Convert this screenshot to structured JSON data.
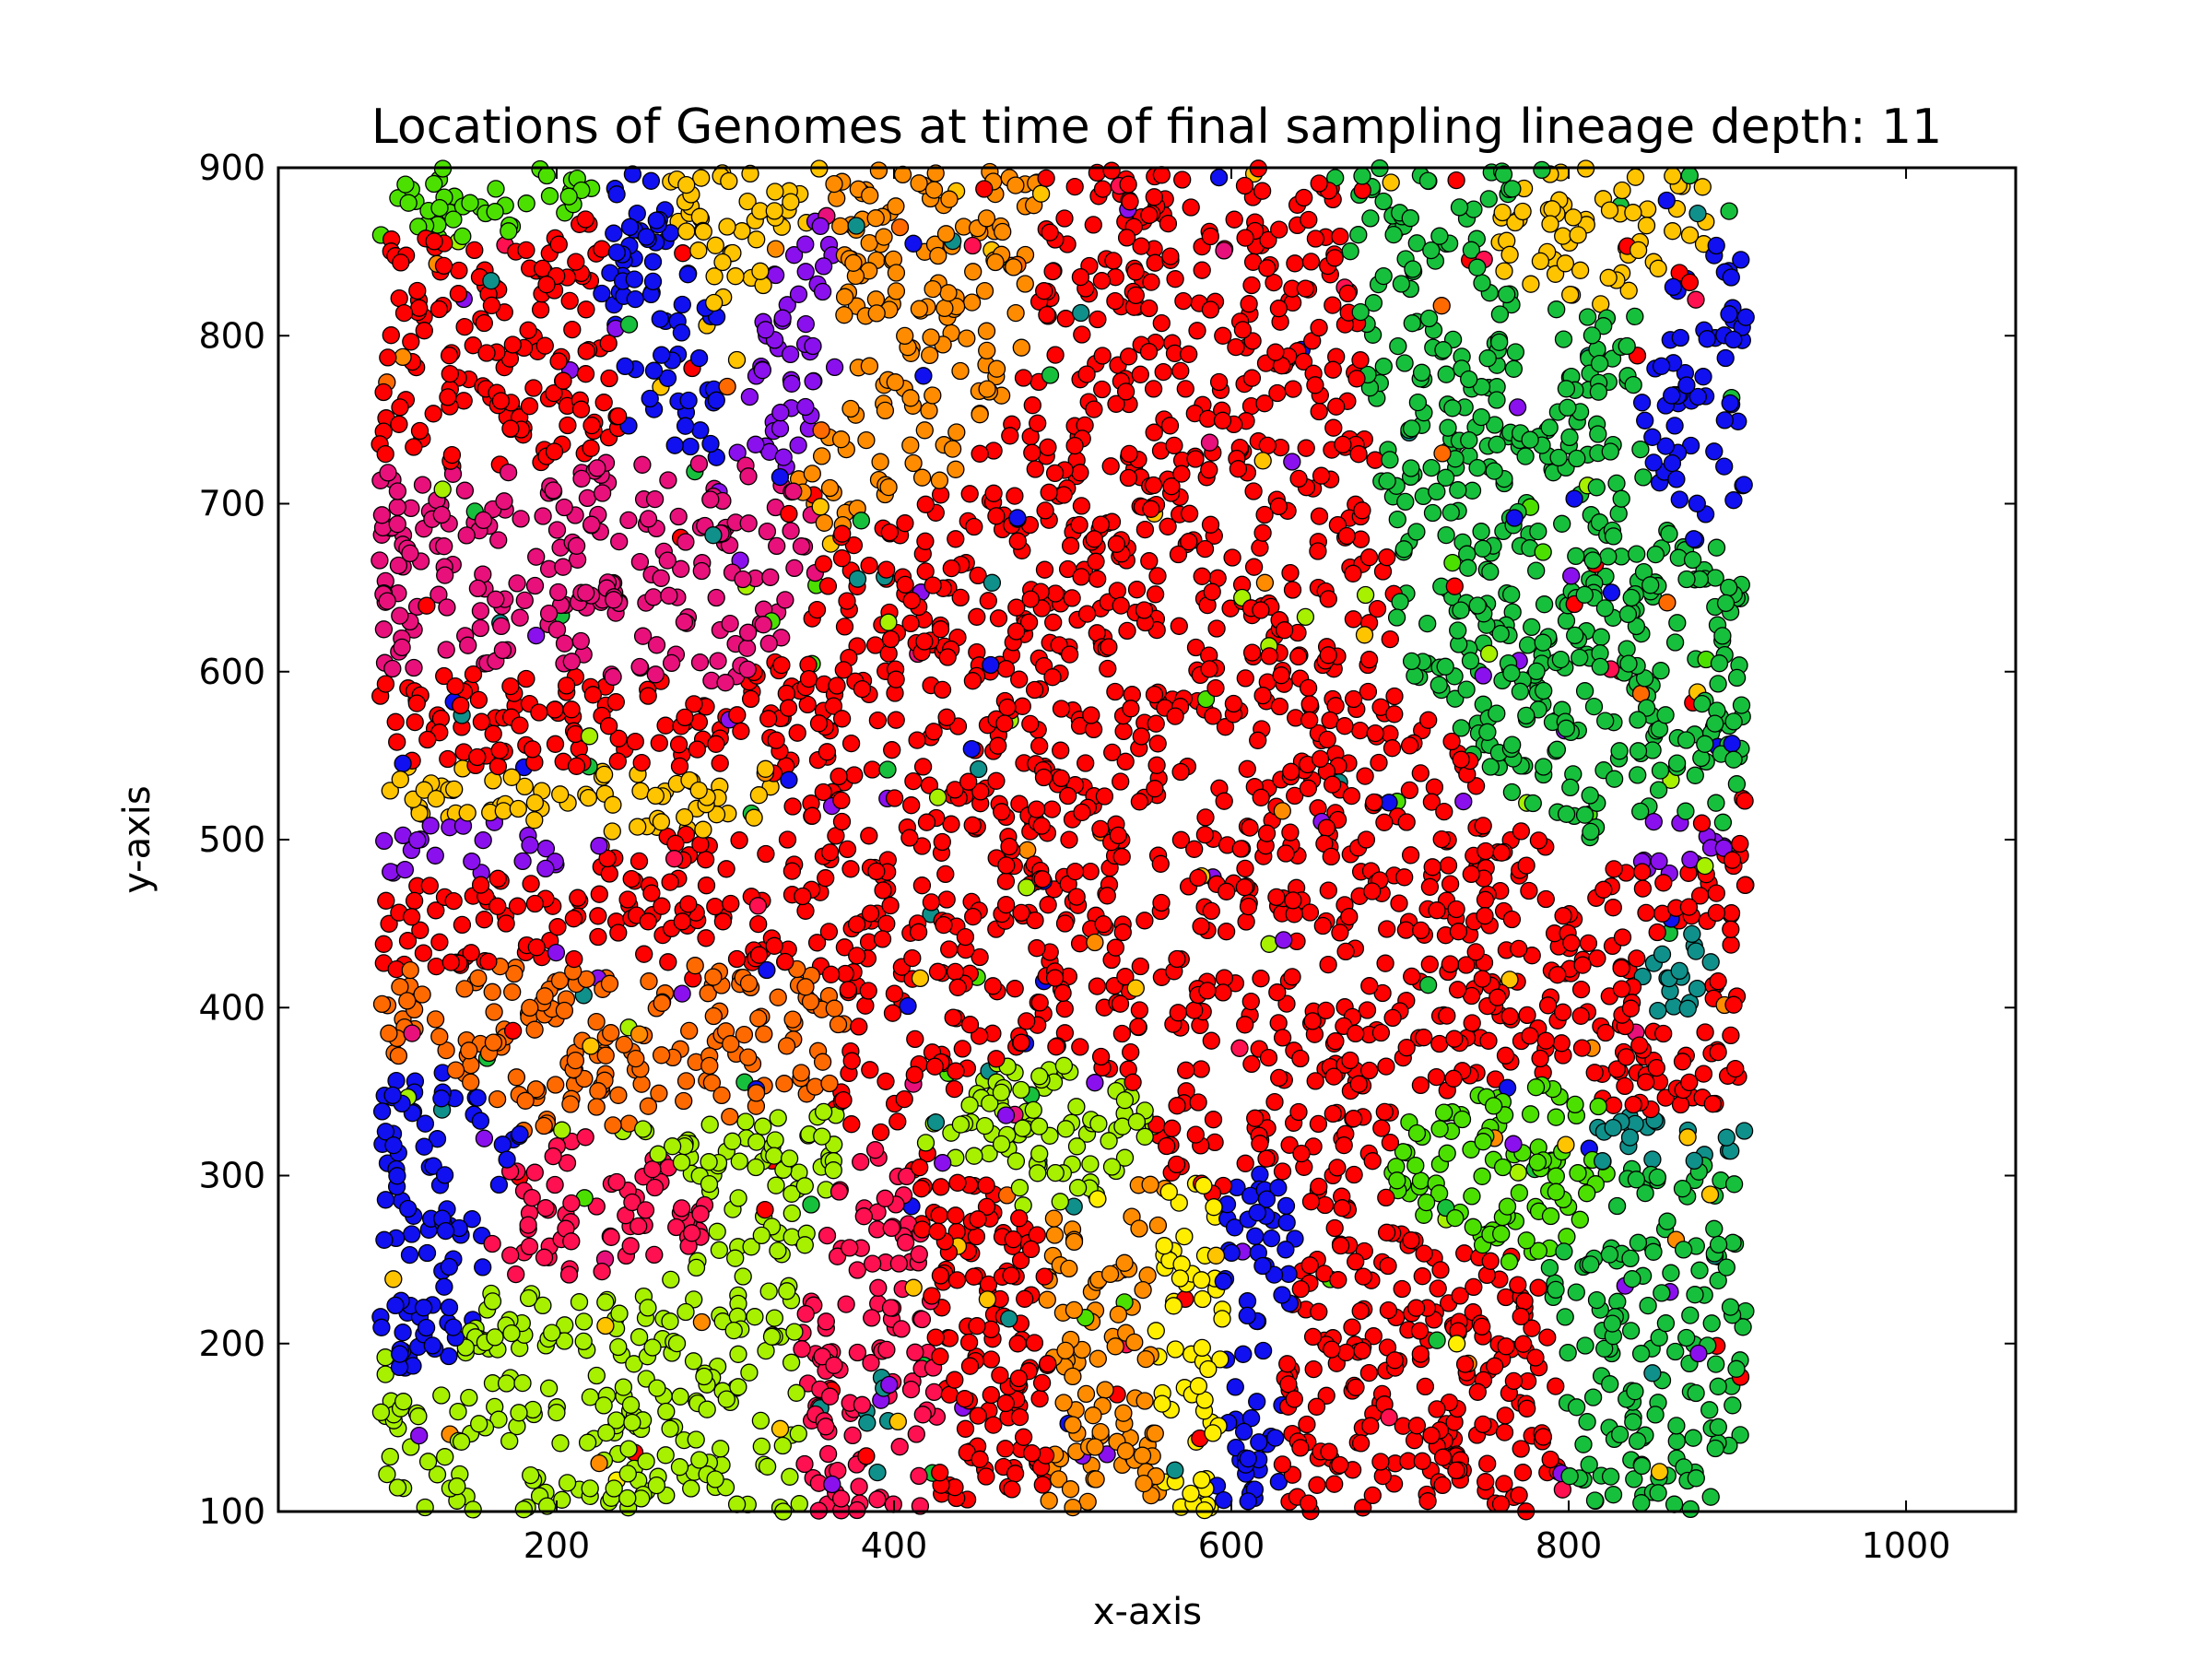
{
  "chart_data": {
    "type": "scatter",
    "title": "Locations of Genomes at time of final sampling lineage depth: 11",
    "xlabel": "x-axis",
    "ylabel": "y-axis",
    "xlim": [
      35,
      1065
    ],
    "ylim": [
      100,
      900
    ],
    "xticks": [
      200,
      400,
      600,
      800,
      1000
    ],
    "yticks": [
      100,
      200,
      300,
      400,
      500,
      600,
      700,
      800,
      900
    ],
    "grid": false,
    "legend": "none",
    "point_domain": {
      "x": [
        95,
        905
      ],
      "y": [
        100,
        900
      ]
    },
    "colors": {
      "red": "#ff0000",
      "green": "#17c03c",
      "blue": "#1010f0",
      "lime": "#a6f000",
      "bright_green": "#4ce000",
      "orange": "#ff8c00",
      "dark_orange": "#ff6a00",
      "gold": "#ffc400",
      "yellow": "#ffee00",
      "magenta": "#e8107a",
      "crimson": "#ff1050",
      "violet": "#8a10ee",
      "teal": "#10908a"
    },
    "regions": [
      {
        "color": "red",
        "x": [
          460,
          720
        ],
        "y": [
          300,
          770
        ]
      },
      {
        "color": "red",
        "x": [
          560,
          930
        ],
        "y": [
          280,
          620
        ]
      },
      {
        "color": "red",
        "x": [
          100,
          240
        ],
        "y": [
          720,
          860
        ]
      },
      {
        "color": "red",
        "x": [
          100,
          300
        ],
        "y": [
          430,
          490
        ]
      },
      {
        "color": "red",
        "x": [
          100,
          250
        ],
        "y": [
          530,
          580
        ]
      },
      {
        "color": "red",
        "x": [
          600,
          780
        ],
        "y": [
          100,
          260
        ]
      },
      {
        "color": "red",
        "x": [
          420,
          500
        ],
        "y": [
          110,
          300
        ]
      },
      {
        "color": "red",
        "x": [
          880,
          905
        ],
        "y": [
          350,
          500
        ]
      },
      {
        "color": "green",
        "x": [
          690,
          905
        ],
        "y": [
          340,
          890
        ]
      },
      {
        "color": "green",
        "x": [
          880,
          905
        ],
        "y": [
          500,
          620
        ]
      },
      {
        "color": "green",
        "x": [
          800,
          905
        ],
        "y": [
          110,
          340
        ]
      },
      {
        "color": "blue",
        "x": [
          100,
          170
        ],
        "y": [
          180,
          370
        ]
      },
      {
        "color": "blue",
        "x": [
          830,
          905
        ],
        "y": [
          640,
          860
        ]
      },
      {
        "color": "blue",
        "x": [
          230,
          290
        ],
        "y": [
          740,
          880
        ]
      },
      {
        "color": "blue",
        "x": [
          590,
          640
        ],
        "y": [
          100,
          300
        ]
      },
      {
        "color": "lime",
        "x": [
          130,
          330
        ],
        "y": [
          100,
          300
        ]
      },
      {
        "color": "lime",
        "x": [
          450,
          560
        ],
        "y": [
          270,
          370
        ]
      },
      {
        "color": "bright_green",
        "x": [
          680,
          850
        ],
        "y": [
          260,
          380
        ]
      },
      {
        "color": "bright_green",
        "x": [
          100,
          200
        ],
        "y": [
          860,
          900
        ]
      },
      {
        "color": "orange",
        "x": [
          350,
          460
        ],
        "y": [
          740,
          900
        ]
      },
      {
        "color": "dark_orange",
        "x": [
          120,
          300
        ],
        "y": [
          340,
          420
        ]
      },
      {
        "color": "orange",
        "x": [
          480,
          580
        ],
        "y": [
          110,
          320
        ]
      },
      {
        "color": "gold",
        "x": [
          260,
          360
        ],
        "y": [
          820,
          900
        ]
      },
      {
        "color": "gold",
        "x": [
          100,
          250
        ],
        "y": [
          500,
          560
        ]
      },
      {
        "color": "gold",
        "x": [
          750,
          880
        ],
        "y": [
          800,
          900
        ]
      },
      {
        "color": "yellow",
        "x": [
          540,
          600
        ],
        "y": [
          120,
          300
        ]
      },
      {
        "color": "magenta",
        "x": [
          100,
          280
        ],
        "y": [
          630,
          720
        ]
      },
      {
        "color": "crimson",
        "x": [
          130,
          300
        ],
        "y": [
          200,
          310
        ]
      },
      {
        "color": "crimson",
        "x": [
          350,
          430
        ],
        "y": [
          110,
          260
        ]
      },
      {
        "color": "violet",
        "x": [
          320,
          380
        ],
        "y": [
          760,
          880
        ]
      },
      {
        "color": "violet",
        "x": [
          100,
          220
        ],
        "y": [
          470,
          520
        ]
      },
      {
        "color": "violet",
        "x": [
          800,
          900
        ],
        "y": [
          470,
          520
        ]
      },
      {
        "color": "teal",
        "x": [
          360,
          420
        ],
        "y": [
          110,
          250
        ]
      },
      {
        "color": "teal",
        "x": [
          820,
          905
        ],
        "y": [
          380,
          460
        ]
      },
      {
        "color": "teal",
        "x": [
          780,
          900
        ],
        "y": [
          300,
          340
        ]
      }
    ]
  }
}
